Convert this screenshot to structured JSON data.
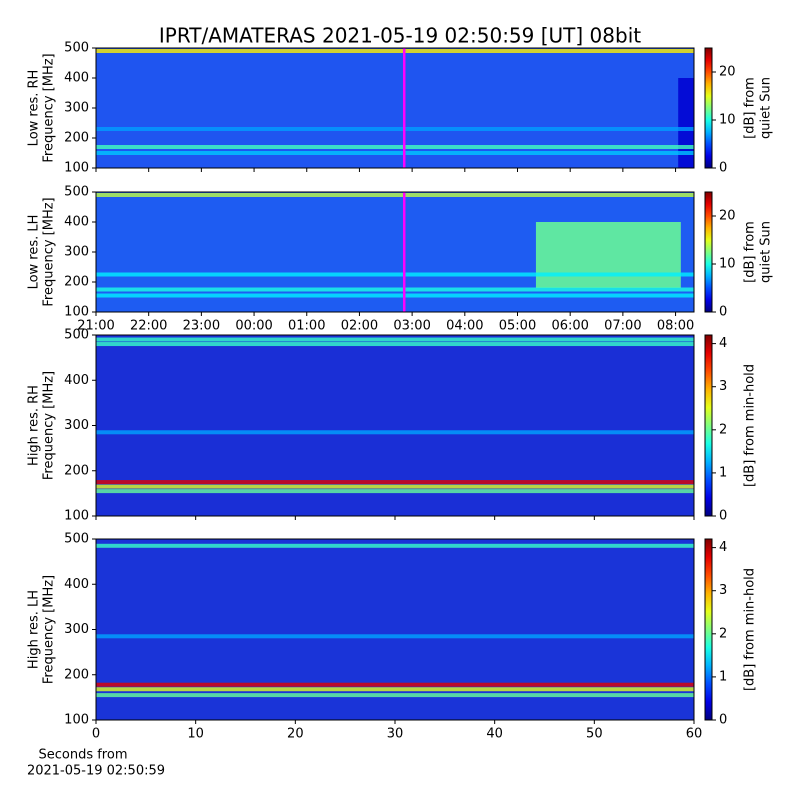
{
  "chart_data": [
    {
      "type": "spectrogram",
      "title": "IPRT/AMATERAS 2021-05-19 02:50:59 [UT]   08bit",
      "ylabel": [
        "Low res. RH",
        "Frequency [MHz]"
      ],
      "ylim": [
        100,
        500
      ],
      "yticks": [
        100,
        200,
        300,
        400,
        500
      ],
      "xlim": [
        21,
        32.35
      ],
      "xticks": [
        {
          "value": 21,
          "label": "21:00"
        },
        {
          "value": 22,
          "label": "22:00"
        },
        {
          "value": 23,
          "label": "23:00"
        },
        {
          "value": 24,
          "label": "00:00"
        },
        {
          "value": 25,
          "label": "01:00"
        },
        {
          "value": 26,
          "label": "02:00"
        },
        {
          "value": 27,
          "label": "03:00"
        },
        {
          "value": 28,
          "label": "04:00"
        },
        {
          "value": 29,
          "label": "05:00"
        },
        {
          "value": 30,
          "label": "06:00"
        },
        {
          "value": 31,
          "label": "07:00"
        },
        {
          "value": 32,
          "label": "08:00"
        }
      ],
      "show_xticklabels": false,
      "marker": {
        "x": 26.85,
        "color": "#ff00ff"
      },
      "bands": [
        {
          "freq": 490,
          "value": 16
        },
        {
          "freq": 170,
          "value": 11
        },
        {
          "freq": 150,
          "value": 8
        },
        {
          "freq": 230,
          "value": 7
        }
      ],
      "regions": [
        {
          "x": [
            32.05,
            32.35
          ],
          "y": [
            100,
            400
          ],
          "value": 2
        }
      ],
      "colorbar": {
        "label": [
          "[dB] from",
          "quiet Sun"
        ],
        "lim": [
          0,
          25
        ],
        "ticks": [
          0,
          10,
          20
        ]
      }
    },
    {
      "type": "spectrogram",
      "ylabel": [
        "Low res. LH",
        "Frequency [MHz]"
      ],
      "ylim": [
        100,
        500
      ],
      "yticks": [
        100,
        200,
        300,
        400,
        500
      ],
      "xlim": [
        21,
        32.35
      ],
      "xticks": [
        {
          "value": 21,
          "label": "21:00"
        },
        {
          "value": 22,
          "label": "22:00"
        },
        {
          "value": 23,
          "label": "23:00"
        },
        {
          "value": 24,
          "label": "00:00"
        },
        {
          "value": 25,
          "label": "01:00"
        },
        {
          "value": 26,
          "label": "02:00"
        },
        {
          "value": 27,
          "label": "03:00"
        },
        {
          "value": 28,
          "label": "04:00"
        },
        {
          "value": 29,
          "label": "05:00"
        },
        {
          "value": 30,
          "label": "06:00"
        },
        {
          "value": 31,
          "label": "07:00"
        },
        {
          "value": 32,
          "label": "08:00"
        }
      ],
      "show_xticklabels": true,
      "marker": {
        "x": 26.85,
        "color": "#ff00ff"
      },
      "bands": [
        {
          "freq": 490,
          "value": 14
        },
        {
          "freq": 175,
          "value": 10
        },
        {
          "freq": 155,
          "value": 9
        },
        {
          "freq": 225,
          "value": 9
        }
      ],
      "regions": [
        {
          "x": [
            29.35,
            32.1
          ],
          "y": [
            180,
            400
          ],
          "value": 12
        }
      ],
      "colorbar": {
        "label": [
          "[dB] from",
          "quiet Sun"
        ],
        "lim": [
          0,
          25
        ],
        "ticks": [
          0,
          10,
          20
        ]
      }
    },
    {
      "type": "spectrogram",
      "ylabel": [
        "High res. RH",
        "Frequency [MHz]"
      ],
      "ylim": [
        100,
        500
      ],
      "yticks": [
        100,
        200,
        300,
        400,
        500
      ],
      "xlim": [
        0,
        60
      ],
      "xticks": [
        0,
        10,
        20,
        30,
        40,
        50,
        60
      ],
      "show_xticklabels": false,
      "bands": [
        {
          "freq": 175,
          "value": 3.8
        },
        {
          "freq": 165,
          "value": 2.5
        },
        {
          "freq": 155,
          "value": 2
        },
        {
          "freq": 480,
          "value": 1.8
        },
        {
          "freq": 490,
          "value": 1.8
        },
        {
          "freq": 285,
          "value": 1.2
        }
      ],
      "colorbar": {
        "label": [
          "[dB] from min-hold"
        ],
        "lim": [
          0,
          4.2
        ],
        "ticks": [
          0,
          1,
          2,
          3,
          4
        ]
      }
    },
    {
      "type": "spectrogram",
      "ylabel": [
        "High res. LH",
        "Frequency [MHz]"
      ],
      "ylim": [
        100,
        500
      ],
      "yticks": [
        100,
        200,
        300,
        400,
        500
      ],
      "xlim": [
        0,
        60
      ],
      "xticks": [
        0,
        10,
        20,
        30,
        40,
        50,
        60
      ],
      "show_xticklabels": true,
      "xlabel": [
        "Seconds from",
        "2021-05-19 02:50:59"
      ],
      "bands": [
        {
          "freq": 178,
          "value": 3.8
        },
        {
          "freq": 168,
          "value": 2.5
        },
        {
          "freq": 155,
          "value": 2
        },
        {
          "freq": 485,
          "value": 1.8
        },
        {
          "freq": 285,
          "value": 1.2
        }
      ],
      "colorbar": {
        "label": [
          "[dB] from min-hold"
        ],
        "lim": [
          0,
          4.2
        ],
        "ticks": [
          0,
          1,
          2,
          3,
          4
        ]
      }
    }
  ]
}
